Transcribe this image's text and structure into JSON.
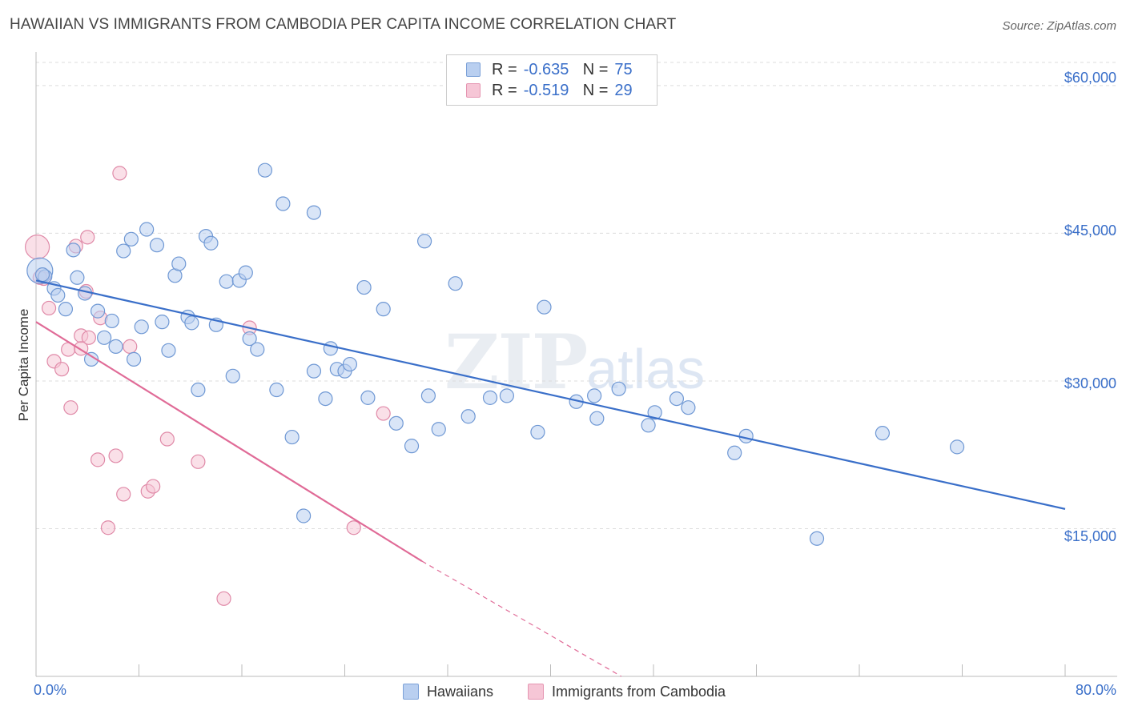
{
  "title": "HAWAIIAN VS IMMIGRANTS FROM CAMBODIA PER CAPITA INCOME CORRELATION CHART",
  "source": "Source: ZipAtlas.com",
  "watermark": {
    "zip": "ZIP",
    "atlas": "atlas"
  },
  "colors": {
    "blue": "#3a6fc9",
    "blue_fill": "#b9cff0",
    "pink": "#e06b97",
    "pink_fill": "#f6c6d6",
    "grid": "#dcdcdc"
  },
  "legend": {
    "rows": [
      {
        "r_label": "R =",
        "r_value": "-0.635",
        "n_label": "N =",
        "n_value": "75"
      },
      {
        "r_label": "R =",
        "r_value": "-0.519",
        "n_label": "N =",
        "n_value": "29"
      }
    ]
  },
  "bottom_legend": [
    "Hawaiians",
    "Immigrants from Cambodia"
  ],
  "chart_data": {
    "type": "scatter",
    "title": "HAWAIIAN VS IMMIGRANTS FROM CAMBODIA PER CAPITA INCOME CORRELATION CHART",
    "xlabel": "",
    "ylabel": "Per Capita Income",
    "xlim": [
      0,
      80
    ],
    "ylim": [
      0,
      63000
    ],
    "x_tick_labels": [
      "0.0%",
      "80.0%"
    ],
    "y_ticks": [
      15000,
      30000,
      45000,
      60000
    ],
    "y_tick_labels": [
      "$15,000",
      "$30,000",
      "$45,000",
      "$60,000"
    ],
    "series": [
      {
        "name": "Hawaiians",
        "points": [
          [
            0.3,
            41200
          ],
          [
            0.7,
            40600
          ],
          [
            1.4,
            39400
          ],
          [
            1.7,
            38700
          ],
          [
            2.3,
            37300
          ],
          [
            2.9,
            43300
          ],
          [
            3.2,
            40500
          ],
          [
            3.8,
            38900
          ],
          [
            4.3,
            32200
          ],
          [
            4.8,
            37100
          ],
          [
            5.3,
            34400
          ],
          [
            5.9,
            36100
          ],
          [
            6.2,
            33500
          ],
          [
            6.8,
            43200
          ],
          [
            7.4,
            44400
          ],
          [
            7.6,
            32200
          ],
          [
            8.2,
            35500
          ],
          [
            8.6,
            45400
          ],
          [
            9.4,
            43800
          ],
          [
            9.8,
            36000
          ],
          [
            10.3,
            33100
          ],
          [
            10.8,
            40700
          ],
          [
            11.1,
            41900
          ],
          [
            11.8,
            36500
          ],
          [
            12.1,
            35900
          ],
          [
            12.6,
            29100
          ],
          [
            13.2,
            44700
          ],
          [
            13.6,
            44000
          ],
          [
            14.0,
            35700
          ],
          [
            14.8,
            40100
          ],
          [
            15.3,
            30500
          ],
          [
            15.8,
            40200
          ],
          [
            16.3,
            41000
          ],
          [
            16.6,
            34300
          ],
          [
            17.2,
            33200
          ],
          [
            17.8,
            51400
          ],
          [
            18.7,
            29100
          ],
          [
            19.2,
            48000
          ],
          [
            19.9,
            24300
          ],
          [
            20.8,
            16300
          ],
          [
            21.6,
            47100
          ],
          [
            21.6,
            31000
          ],
          [
            22.5,
            28200
          ],
          [
            22.9,
            33300
          ],
          [
            23.4,
            31200
          ],
          [
            24.0,
            31000
          ],
          [
            24.4,
            31700
          ],
          [
            25.5,
            39500
          ],
          [
            25.8,
            28300
          ],
          [
            27.0,
            37300
          ],
          [
            28.0,
            25700
          ],
          [
            29.2,
            23400
          ],
          [
            30.2,
            44200
          ],
          [
            30.5,
            28500
          ],
          [
            31.3,
            25100
          ],
          [
            32.6,
            39900
          ],
          [
            33.6,
            26400
          ],
          [
            35.3,
            28300
          ],
          [
            36.6,
            28500
          ],
          [
            39.0,
            24800
          ],
          [
            39.5,
            37500
          ],
          [
            42.0,
            27900
          ],
          [
            43.4,
            28500
          ],
          [
            43.6,
            26200
          ],
          [
            45.3,
            29200
          ],
          [
            47.6,
            25500
          ],
          [
            48.1,
            26800
          ],
          [
            49.8,
            28200
          ],
          [
            50.7,
            27300
          ],
          [
            54.3,
            22700
          ],
          [
            55.2,
            24400
          ],
          [
            60.7,
            14000
          ],
          [
            65.8,
            24700
          ],
          [
            71.6,
            23300
          ],
          [
            0.5,
            40800
          ]
        ],
        "trend": {
          "x0": 0,
          "y0": 40200,
          "x1": 80,
          "y1": 17000
        }
      },
      {
        "name": "Immigrants from Cambodia",
        "points": [
          [
            0.1,
            43600
          ],
          [
            0.6,
            40400
          ],
          [
            1.0,
            37400
          ],
          [
            1.4,
            32000
          ],
          [
            2.0,
            31200
          ],
          [
            2.5,
            33200
          ],
          [
            2.7,
            27300
          ],
          [
            3.1,
            43700
          ],
          [
            3.5,
            34600
          ],
          [
            3.9,
            39100
          ],
          [
            4.1,
            34400
          ],
          [
            4.0,
            44600
          ],
          [
            4.8,
            22000
          ],
          [
            5.0,
            36400
          ],
          [
            5.6,
            15100
          ],
          [
            6.2,
            22400
          ],
          [
            6.5,
            51100
          ],
          [
            6.8,
            18500
          ],
          [
            7.3,
            33500
          ],
          [
            8.7,
            18800
          ],
          [
            9.1,
            19300
          ],
          [
            10.2,
            24100
          ],
          [
            12.6,
            21800
          ],
          [
            14.6,
            7900
          ],
          [
            16.6,
            35400
          ],
          [
            24.7,
            15100
          ],
          [
            27.0,
            26700
          ],
          [
            0.3,
            40500
          ],
          [
            3.5,
            33300
          ]
        ],
        "trend": {
          "x0": 0,
          "y0": 36000,
          "x1": 30,
          "y1": 11700,
          "dash_to_x": 45.5,
          "dash_to_y": 0
        }
      }
    ]
  }
}
